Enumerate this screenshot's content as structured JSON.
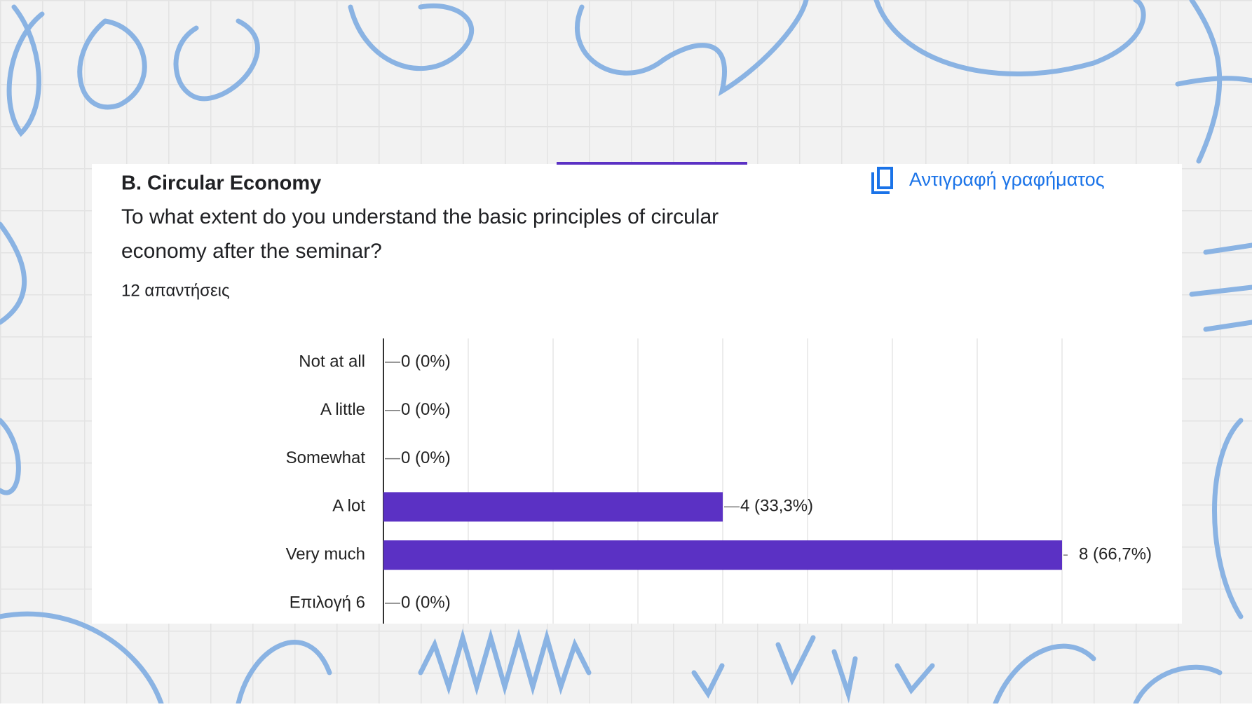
{
  "card": {
    "title": "B. Circular Economy",
    "question_lines": [
      "To what extent do you understand the basic principles of circular",
      "economy after the seminar?"
    ],
    "responses": "12 απαντήσεις",
    "copy_button": "Αντιγραφή γραφήματος"
  },
  "chart_data": {
    "type": "hbar",
    "categories": [
      "Not at all",
      "A little",
      "Somewhat",
      "A lot",
      "Very much",
      "Επιλογή 6"
    ],
    "values": [
      0,
      0,
      0,
      4,
      8,
      0
    ],
    "value_labels": [
      "0 (0%)",
      "0 (0%)",
      "0 (0%)",
      "4 (33,3%)",
      "8 (66,7%)",
      "0 (0%)"
    ],
    "color": "#5b31c4",
    "xlim": [
      0,
      8
    ],
    "xticks": [
      0,
      1,
      2,
      3,
      4,
      5,
      6,
      7,
      8
    ],
    "grid": true
  }
}
